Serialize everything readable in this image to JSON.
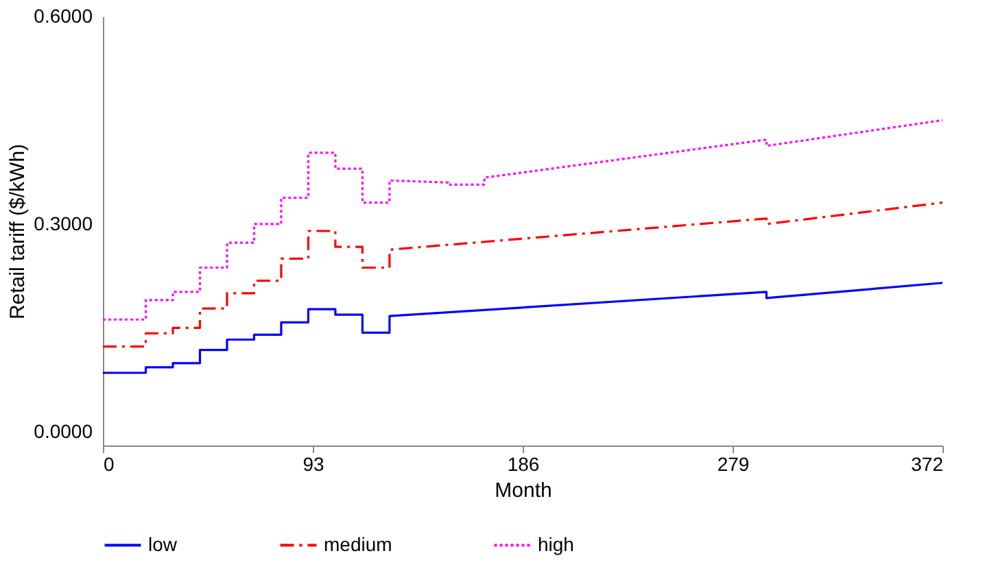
{
  "chart_data": {
    "type": "line",
    "xlabel": "Month",
    "ylabel": "Retail tariff ($/kWh)",
    "xlim": [
      0,
      372
    ],
    "xticks": [
      0,
      93,
      186,
      279,
      372
    ],
    "ylim": [
      -0.02,
      0.6
    ],
    "yticks": [
      {
        "value": 0,
        "label": "0.0000"
      },
      {
        "value": 0.3,
        "label": "0.3000"
      },
      {
        "value": 0.6,
        "label": "0.6000"
      }
    ],
    "grid": false,
    "legend": "bottom",
    "marker": "none",
    "series": [
      {
        "name": "low",
        "color": "#0000ff",
        "line_style": "solid",
        "x": [
          0,
          19,
          19,
          31,
          31,
          43,
          43,
          55,
          55,
          67,
          67,
          79,
          79,
          91,
          91,
          103,
          103,
          115,
          115,
          127,
          127,
          294,
          294,
          372
        ],
        "values": [
          0.085,
          0.085,
          0.093,
          0.093,
          0.099,
          0.099,
          0.118,
          0.118,
          0.133,
          0.133,
          0.14,
          0.14,
          0.158,
          0.158,
          0.177,
          0.177,
          0.169,
          0.169,
          0.143,
          0.143,
          0.167,
          0.202,
          0.193,
          0.215
        ]
      },
      {
        "name": "medium",
        "color": "#ff0000",
        "line_style": "dashed",
        "x": [
          0,
          19,
          19,
          31,
          31,
          43,
          43,
          55,
          55,
          67,
          67,
          79,
          79,
          91,
          91,
          103,
          103,
          115,
          115,
          127,
          127,
          294,
          294,
          372
        ],
        "values": [
          0.123,
          0.123,
          0.142,
          0.142,
          0.15,
          0.15,
          0.178,
          0.178,
          0.2,
          0.2,
          0.218,
          0.218,
          0.25,
          0.25,
          0.29,
          0.29,
          0.267,
          0.267,
          0.237,
          0.237,
          0.263,
          0.308,
          0.3,
          0.331
        ]
      },
      {
        "name": "high",
        "color": "#ff00ff",
        "line_style": "dotted",
        "x": [
          0,
          19,
          19,
          31,
          31,
          43,
          43,
          55,
          55,
          67,
          67,
          79,
          79,
          91,
          91,
          103,
          103,
          115,
          115,
          127,
          127,
          153,
          153,
          169,
          169,
          294,
          294,
          372
        ],
        "values": [
          0.162,
          0.162,
          0.19,
          0.19,
          0.202,
          0.202,
          0.237,
          0.237,
          0.273,
          0.273,
          0.3,
          0.3,
          0.338,
          0.338,
          0.403,
          0.403,
          0.38,
          0.38,
          0.331,
          0.331,
          0.363,
          0.36,
          0.357,
          0.357,
          0.367,
          0.422,
          0.413,
          0.45
        ]
      }
    ]
  }
}
